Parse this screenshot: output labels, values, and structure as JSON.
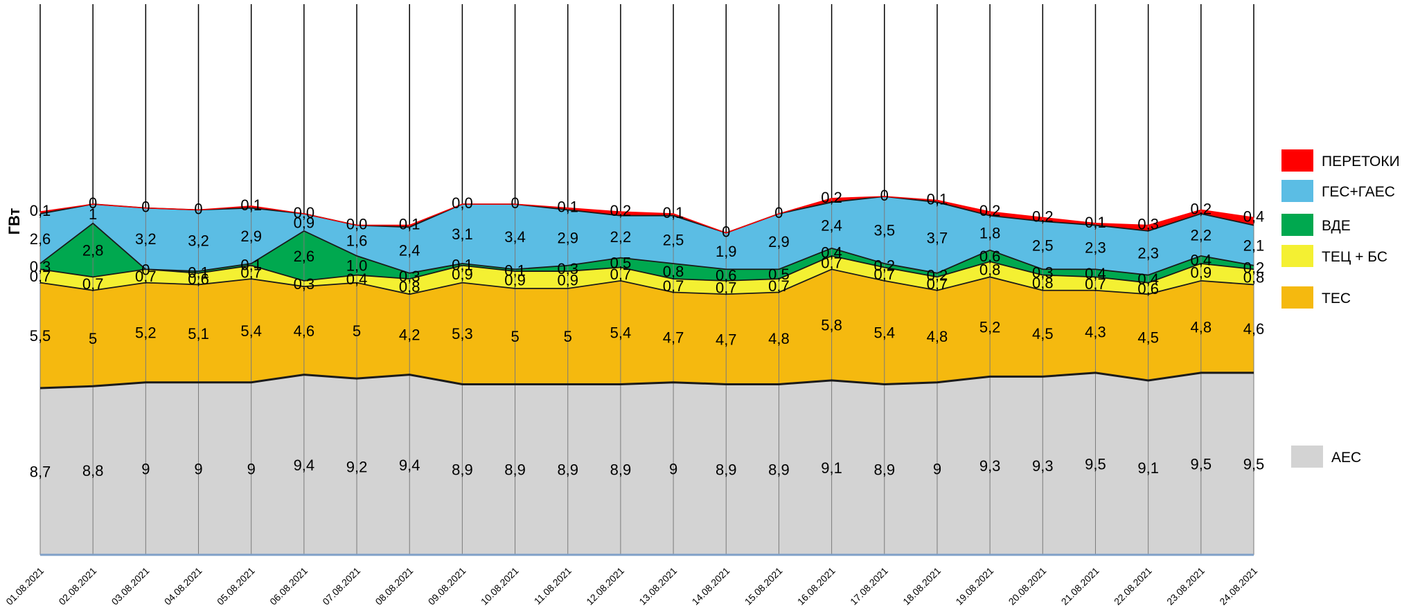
{
  "chart_data": {
    "type": "area",
    "ylabel": "ГВт",
    "categories": [
      "01.08.2021",
      "02.08.2021",
      "03.08.2021",
      "04.08.2021",
      "05.08.2021",
      "06.08.2021",
      "07.08.2021",
      "08.08.2021",
      "09.08.2021",
      "10.08.2021",
      "11.08.2021",
      "12.08.2021",
      "13.08.2021",
      "14.08.2021",
      "15.08.2021",
      "16.08.2021",
      "17.08.2021",
      "18.08.2021",
      "19.08.2021",
      "20.08.2021",
      "21.08.2021",
      "22.08.2021",
      "23.08.2021",
      "24.08.2021"
    ],
    "series": [
      {
        "name": "АЕС",
        "color": "#d3d3d3",
        "values": [
          8.7,
          8.8,
          9,
          9,
          9,
          9.4,
          9.2,
          9.4,
          8.9,
          8.9,
          8.9,
          8.9,
          9,
          8.9,
          8.9,
          9.1,
          8.9,
          9,
          9.3,
          9.3,
          9.5,
          9.1,
          9.5,
          9.5
        ],
        "labels": [
          "8,7",
          "8,8",
          "9",
          "9",
          "9",
          "9,4",
          "9,2",
          "9,4",
          "8,9",
          "8,9",
          "8,9",
          "8,9",
          "9",
          "8,9",
          "8,9",
          "9,1",
          "8,9",
          "9",
          "9,3",
          "9,3",
          "9,5",
          "9,1",
          "9,5",
          "9,5"
        ]
      },
      {
        "name": "ТЕС",
        "color": "#f5b90f",
        "values": [
          5.5,
          5,
          5.2,
          5.1,
          5.4,
          4.6,
          5,
          4.2,
          5.3,
          5,
          5,
          5.4,
          4.7,
          4.7,
          4.8,
          5.8,
          5.4,
          4.8,
          5.2,
          4.5,
          4.3,
          4.5,
          4.8,
          4.6
        ],
        "labels": [
          "5,5",
          "5",
          "5,2",
          "5,1",
          "5,4",
          "4,6",
          "5",
          "4,2",
          "5,3",
          "5",
          "5",
          "5,4",
          "4,7",
          "4,7",
          "4,8",
          "5,8",
          "5,4",
          "4,8",
          "5,2",
          "4,5",
          "4,3",
          "4,5",
          "4,8",
          "4,6"
        ]
      },
      {
        "name": "ТЕЦ + БС",
        "color": "#f4f032",
        "values": [
          0.7,
          0.7,
          0.7,
          0.6,
          0.7,
          0.3,
          0.4,
          0.8,
          0.9,
          0.9,
          0.9,
          0.7,
          0.7,
          0.7,
          0.7,
          0.7,
          0.7,
          0.7,
          0.8,
          0.8,
          0.7,
          0.6,
          0.9,
          0.8
        ],
        "labels": [
          "0,7",
          "0,7",
          "0,7",
          "0,6",
          "0,7",
          "0,3",
          "0,4",
          "0,8",
          "0,9",
          "0,9",
          "0,9",
          "0,7",
          "0,7",
          "0,7",
          "0,7",
          "0,7",
          "0,7",
          "0,7",
          "0,8",
          "0,8",
          "0,7",
          "0,6",
          "0,9",
          "0,8"
        ]
      },
      {
        "name": "ВДЕ",
        "color": "#00a84f",
        "values": [
          0.3,
          2.8,
          0,
          0.1,
          0.1,
          2.6,
          1.0,
          0.3,
          0.1,
          0.1,
          0.3,
          0.5,
          0.8,
          0.6,
          0.5,
          0.4,
          0.2,
          0.2,
          0.6,
          0.3,
          0.4,
          0.4,
          0.4,
          0.2
        ],
        "labels": [
          "0,3",
          "2,8",
          "0",
          "0,1",
          "0,1",
          "2,6",
          "1,0",
          "0,3",
          "0,1",
          "0,1",
          "0,3",
          "0,5",
          "0,8",
          "0,6",
          "0,5",
          "0,4",
          "0,2",
          "0,2",
          "0,6",
          "0,3",
          "0,4",
          "0,4",
          "0,4",
          "0,2"
        ]
      },
      {
        "name": "ГЕС+ГАЕС",
        "color": "#5bbde4",
        "values": [
          2.6,
          1,
          3.2,
          3.2,
          2.9,
          0.9,
          1.6,
          2.4,
          3.1,
          3.4,
          2.9,
          2.2,
          2.5,
          1.9,
          2.9,
          2.4,
          3.5,
          3.7,
          1.8,
          2.5,
          2.3,
          2.3,
          2.2,
          2.1
        ],
        "labels": [
          "2,6",
          "1",
          "3,2",
          "3,2",
          "2,9",
          "0,9",
          "1,6",
          "2,4",
          "3,1",
          "3,4",
          "2,9",
          "2,2",
          "2,5",
          "1,9",
          "2,9",
          "2,4",
          "3,5",
          "3,7",
          "1,8",
          "2,5",
          "2,3",
          "2,3",
          "2,2",
          "2,1"
        ]
      },
      {
        "name": "ПЕРЕТОКИ",
        "color": "#ff0000",
        "values": [
          0.1,
          0,
          0,
          0,
          0.1,
          0.0,
          0.0,
          0.1,
          0.0,
          0,
          0.1,
          0.2,
          0.1,
          0,
          0,
          0.2,
          0,
          0.1,
          0.2,
          0.2,
          0.1,
          0.3,
          0.2,
          0.4
        ],
        "labels": [
          "0,1",
          "0",
          "0",
          "0",
          "0,1",
          "0,0",
          "0,0",
          "0,1",
          "0,0",
          "0",
          "0,1",
          "0,2",
          "0,1",
          "0",
          "0",
          "0,2",
          "0",
          "0,1",
          "0,2",
          "0,2",
          "0,1",
          "0,3",
          "0,2",
          "0,4"
        ]
      }
    ],
    "legend_order": [
      "ПЕРЕТОКИ",
      "ГЕС+ГАЕС",
      "ВДЕ",
      "ТЕЦ + БС",
      "ТЕС",
      "АЕС"
    ],
    "legend_position": "right",
    "grid": "vertical"
  }
}
